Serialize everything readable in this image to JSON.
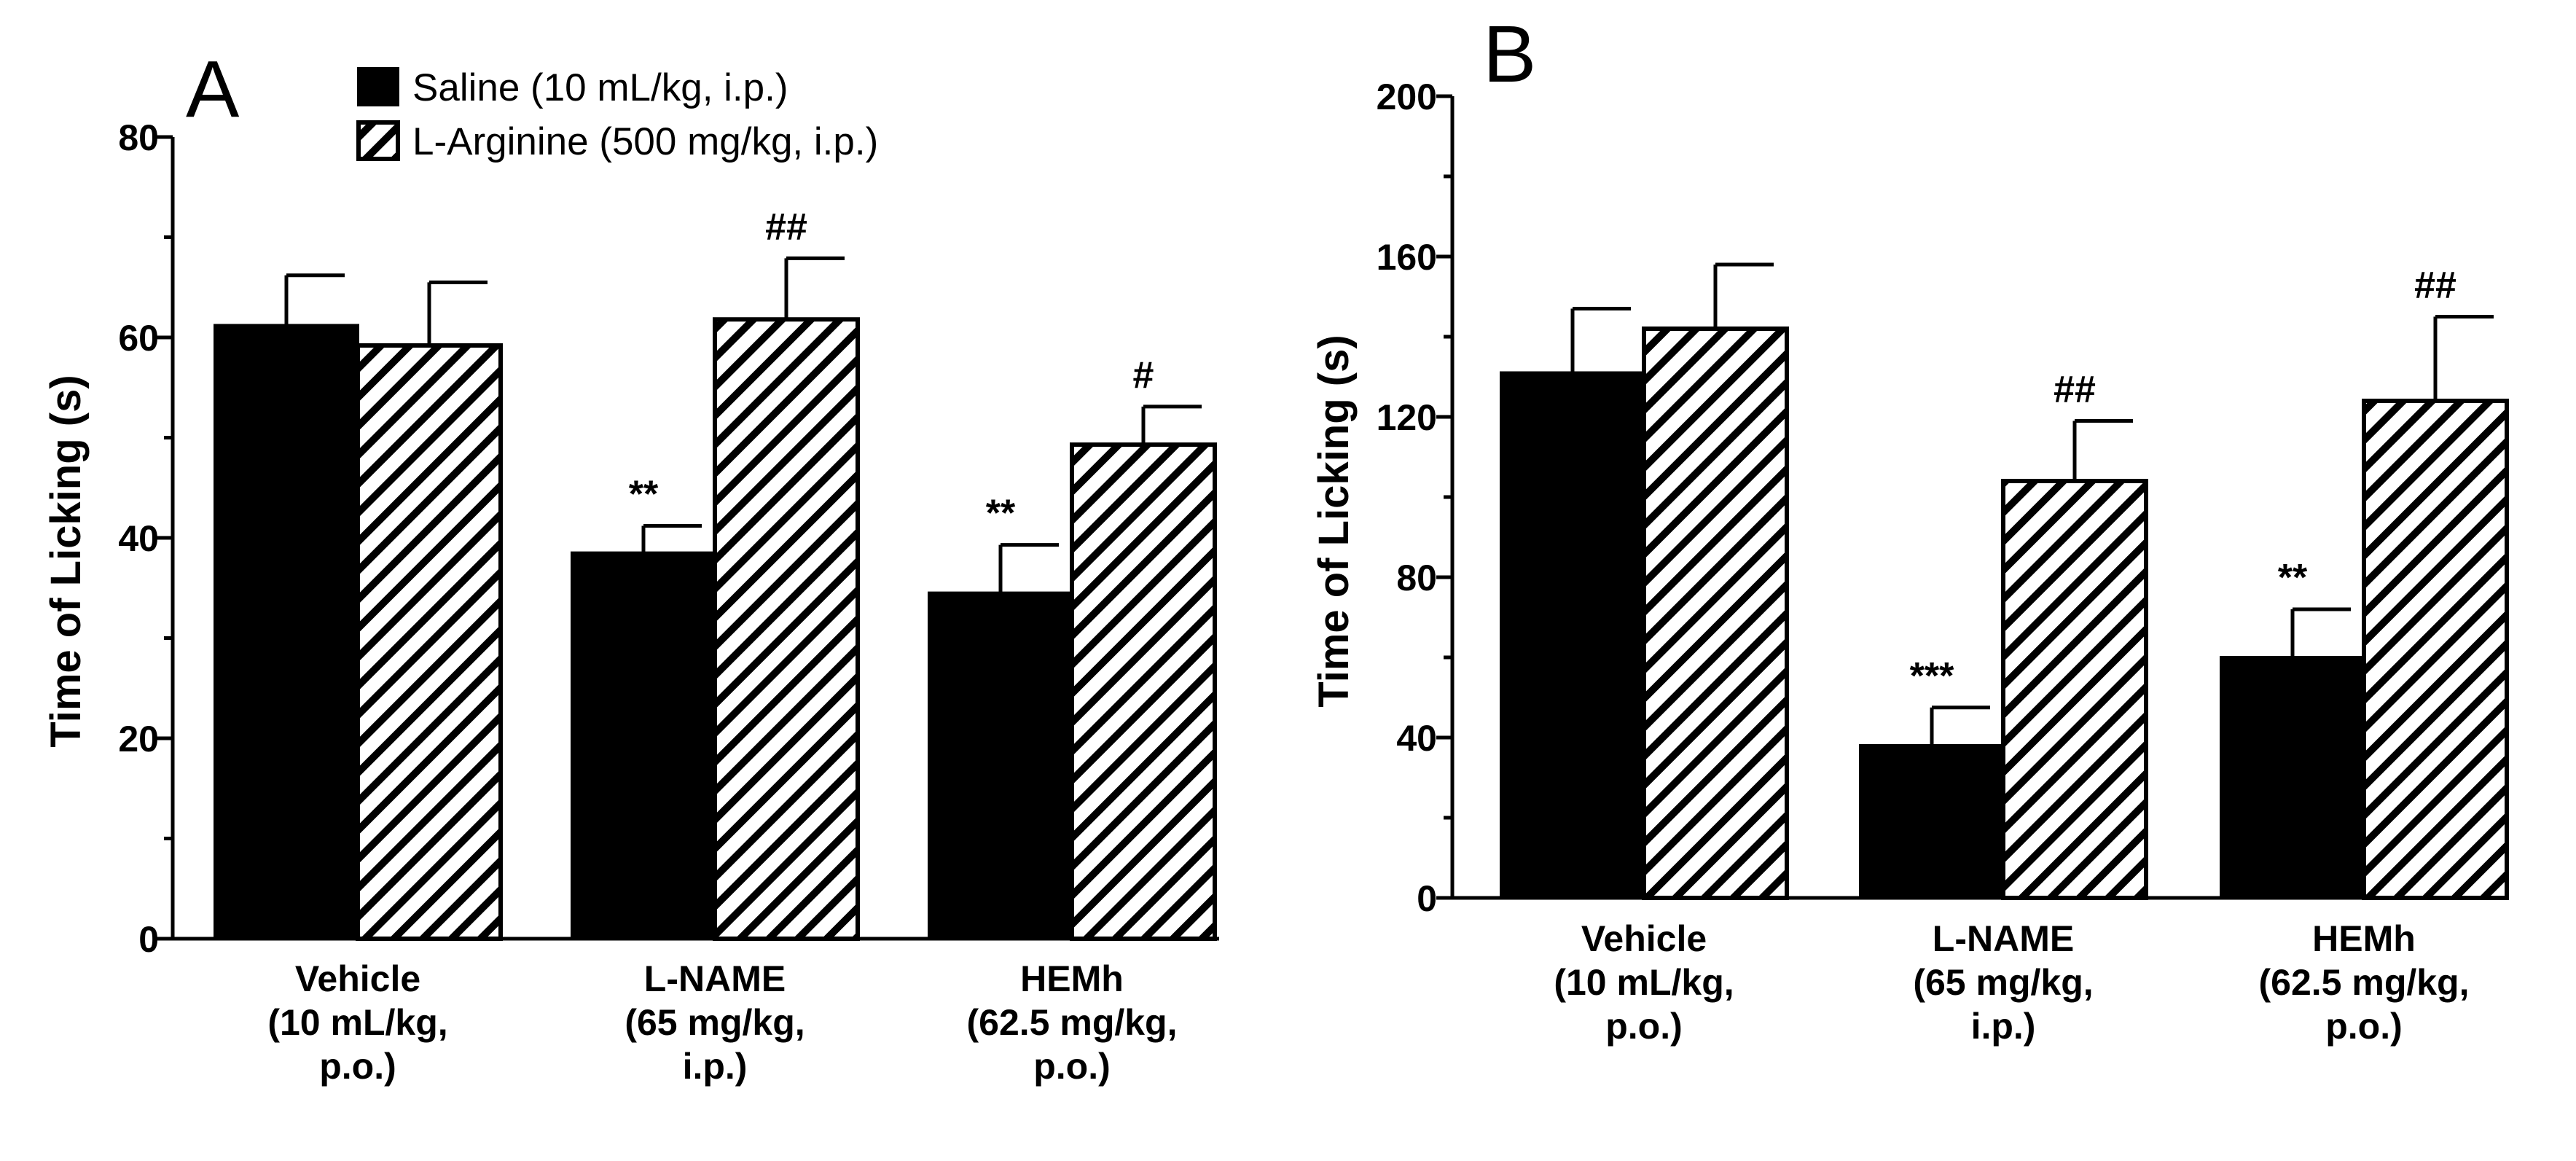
{
  "legend": {
    "saline": "Saline (10 mL/kg, i.p.)",
    "larginine": "L-Arginine (500 mg/kg, i.p.)"
  },
  "colors": {
    "saline": "#000000",
    "larginine_hatch": "#000000",
    "background": "#ffffff"
  },
  "chart_data": [
    {
      "type": "bar",
      "panel": "A",
      "title": "",
      "xlabel": "",
      "ylabel": "Time of Licking (s)",
      "ylim": [
        0,
        80
      ],
      "yticks": [
        "0",
        "20",
        "40",
        "60",
        "80"
      ],
      "categories": [
        [
          "Vehicle",
          "(10 mL/kg,",
          "p.o.)"
        ],
        [
          "L-NAME",
          "(65 mg/kg,",
          "i.p.)"
        ],
        [
          "HEMh",
          "(62.5 mg/kg,",
          "p.o.)"
        ]
      ],
      "series": [
        {
          "name": "Saline (10 mL/kg, i.p.)",
          "pattern": "solid",
          "values": [
            61.2,
            38.5,
            34.5
          ],
          "errors": [
            5.0,
            2.7,
            4.8
          ],
          "annotations": [
            "",
            "**",
            "**"
          ]
        },
        {
          "name": "L-Arginine (500 mg/kg, i.p.)",
          "pattern": "hatch",
          "values": [
            59.2,
            61.8,
            49.3
          ],
          "errors": [
            6.3,
            6.1,
            3.8
          ],
          "annotations": [
            "",
            "##",
            "#"
          ]
        }
      ]
    },
    {
      "type": "bar",
      "panel": "B",
      "title": "",
      "xlabel": "",
      "ylabel": "Time of Licking (s)",
      "ylim": [
        0,
        200
      ],
      "yticks": [
        "0",
        "40",
        "80",
        "120",
        "160",
        "200"
      ],
      "categories": [
        [
          "Vehicle",
          "(10 mL/kg,",
          "p.o.)"
        ],
        [
          "L-NAME",
          "(65 mg/kg,",
          "i.p.)"
        ],
        [
          "HEMh",
          "(62.5 mg/kg,",
          "p.o.)"
        ]
      ],
      "series": [
        {
          "name": "Saline (10 mL/kg, i.p.)",
          "pattern": "solid",
          "values": [
            131,
            38,
            60
          ],
          "errors": [
            16,
            9.5,
            12
          ],
          "annotations": [
            "",
            "***",
            "**"
          ]
        },
        {
          "name": "L-Arginine (500 mg/kg, i.p.)",
          "pattern": "hatch",
          "values": [
            142,
            104,
            124
          ],
          "errors": [
            16,
            15,
            21
          ],
          "annotations": [
            "",
            "##",
            "##"
          ]
        }
      ]
    }
  ]
}
